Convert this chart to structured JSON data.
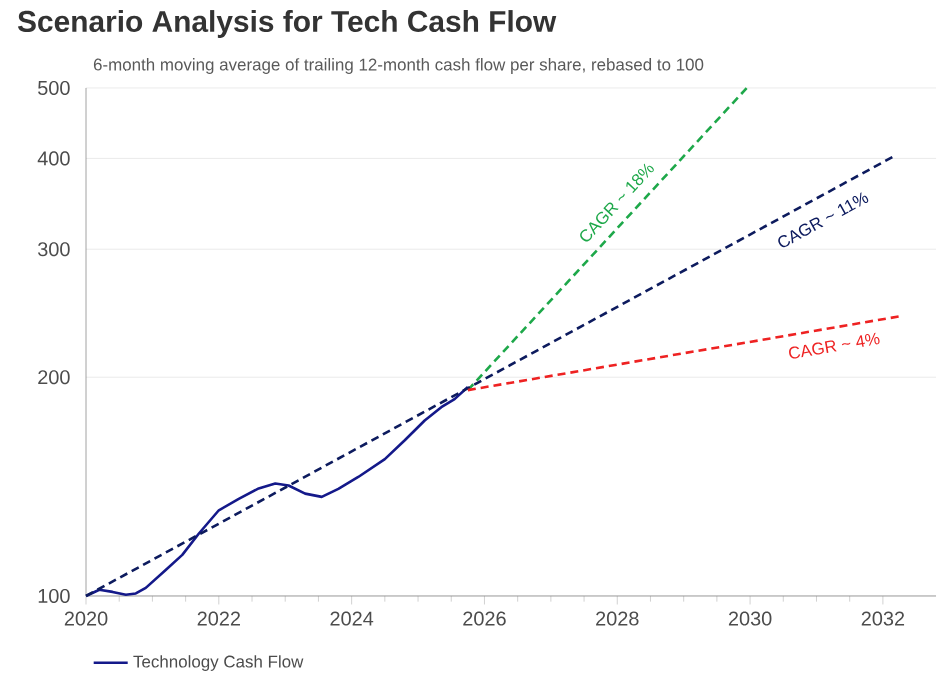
{
  "chart_data": {
    "type": "line",
    "title": "Scenario Analysis for Tech Cash Flow",
    "subtitle": "6-month moving average of trailing 12-month cash flow per share, rebased to 100",
    "series": [
      {
        "name": "Technology Cash Flow",
        "color": "#14198a",
        "x": [
          2020.0,
          2020.2,
          2020.4,
          2020.6,
          2020.75,
          2020.9,
          2021.2,
          2021.45,
          2021.7,
          2022.0,
          2022.3,
          2022.6,
          2022.85,
          2023.05,
          2023.3,
          2023.55,
          2023.8,
          2024.1,
          2024.5,
          2024.8,
          2025.1,
          2025.35,
          2025.55,
          2025.75
        ],
        "values": [
          100,
          102,
          101.3,
          100.4,
          100.8,
          102.6,
          108.6,
          113.9,
          121.9,
          131.2,
          136,
          140.6,
          142.8,
          141.9,
          138.3,
          136.9,
          140.4,
          145.8,
          154.3,
          163.8,
          174.4,
          181.9,
          186.6,
          193.9
        ]
      },
      {
        "color": "#1ea84a",
        "line_style": "dashed",
        "x": [
          2025.75,
          2029.95
        ],
        "values": [
          192,
          500
        ]
      },
      {
        "color": "#0d1b5e",
        "line_style": "dashed",
        "x": [
          2020.0,
          2032.15
        ],
        "values": [
          100,
          402
        ]
      },
      {
        "color": "#ee2222",
        "line_style": "dashed",
        "x": [
          2025.75,
          2032.26
        ],
        "values": [
          192,
          242.6
        ]
      }
    ],
    "annotations": [
      "CAGR ~ 18%",
      "CAGR ~ 11%",
      "CAGR ~ 4%"
    ],
    "xlim": [
      2020,
      2032.8
    ],
    "ylim": [
      100,
      500
    ],
    "xticks": [
      2020,
      2022,
      2024,
      2026,
      2028,
      2030,
      2032
    ],
    "yticks": [
      100,
      200,
      300,
      400,
      500
    ],
    "log": "y",
    "grid": "y",
    "legend": "bottom"
  }
}
